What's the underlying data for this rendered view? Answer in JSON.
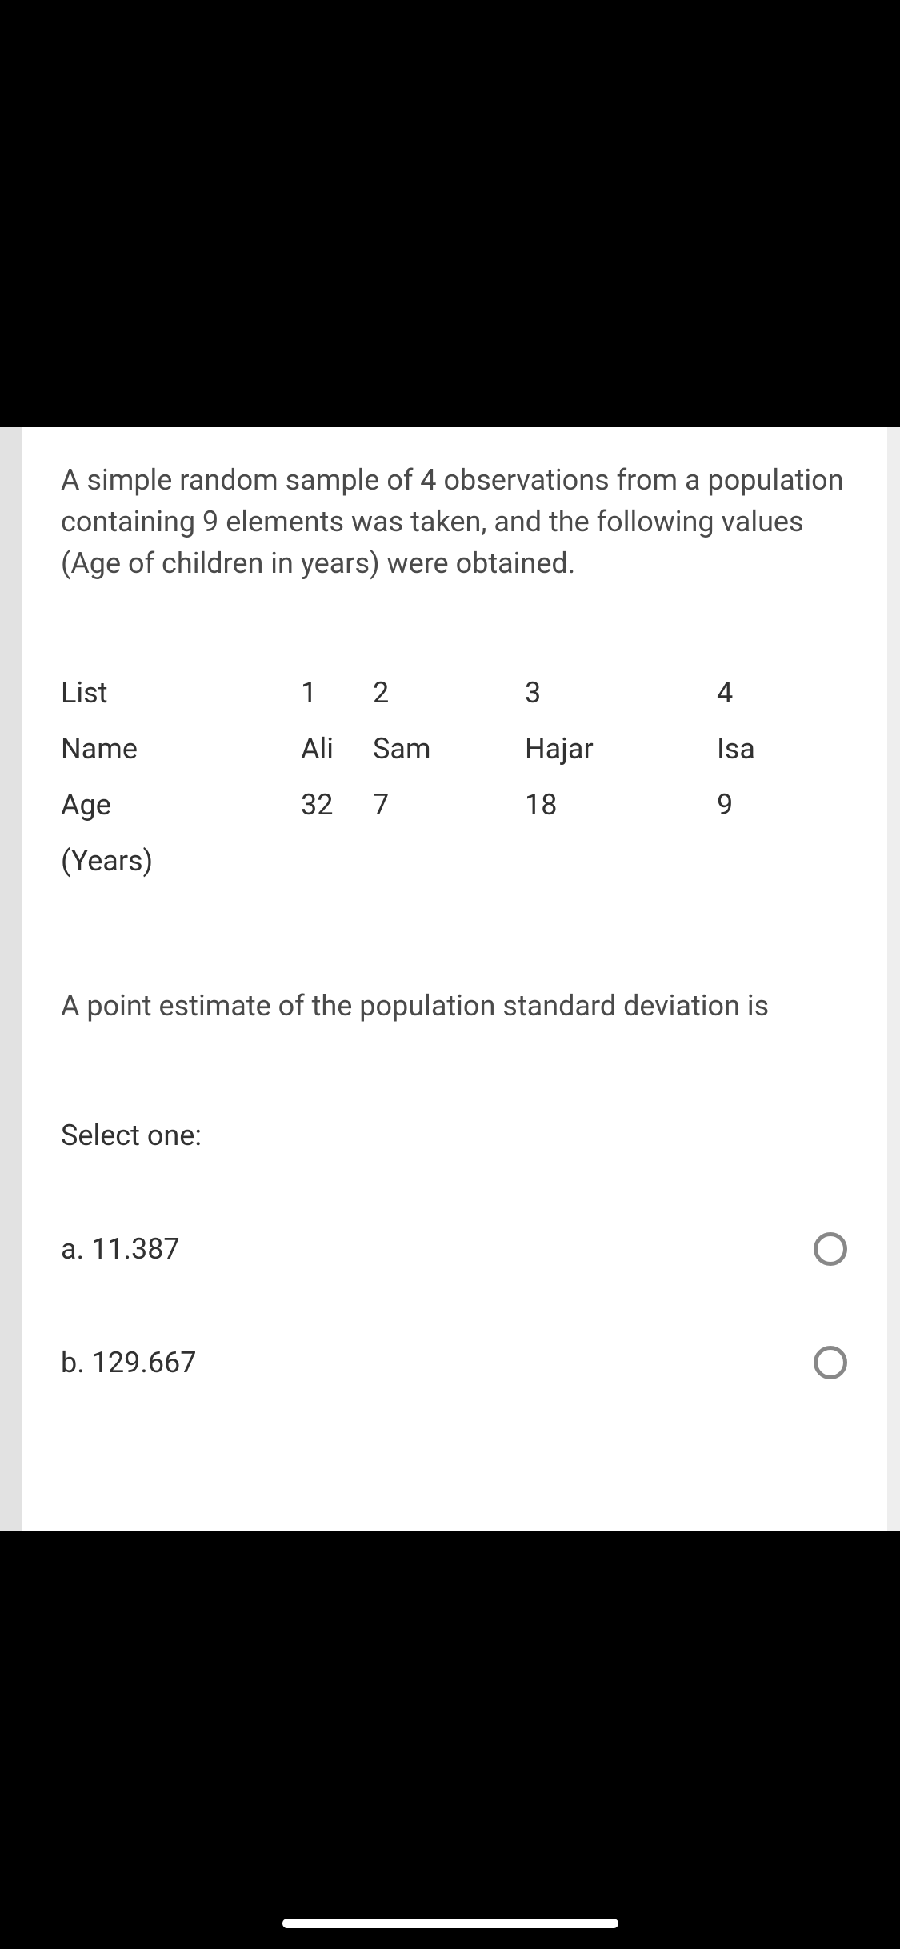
{
  "question": {
    "intro": "A simple random sample of 4 observations from a population containing 9 elements was taken, and the following values (Age of children in years) were obtained.",
    "table": {
      "rows": [
        {
          "label": "List",
          "c1": "1",
          "c2": "2",
          "c3": "3",
          "c4": "4"
        },
        {
          "label": "Name",
          "c1": "Ali",
          "c2": "Sam",
          "c3": "Hajar",
          "c4": "Isa"
        },
        {
          "label": "Age",
          "c1": "32",
          "c2": "7",
          "c3": "18",
          "c4": "9"
        },
        {
          "label": "(Years)",
          "c1": "",
          "c2": "",
          "c3": "",
          "c4": ""
        }
      ]
    },
    "prompt": "A point estimate of the population standard deviation is",
    "selectLabel": "Select one:",
    "options": [
      {
        "label": "a. 11.387"
      },
      {
        "label": "b. 129.667"
      }
    ]
  },
  "colors": {
    "pageBg": "#000000",
    "cardBg": "#ffffff",
    "textMuted": "#4a4a4a",
    "textBody": "#313131",
    "radioBorder": "#888888"
  }
}
